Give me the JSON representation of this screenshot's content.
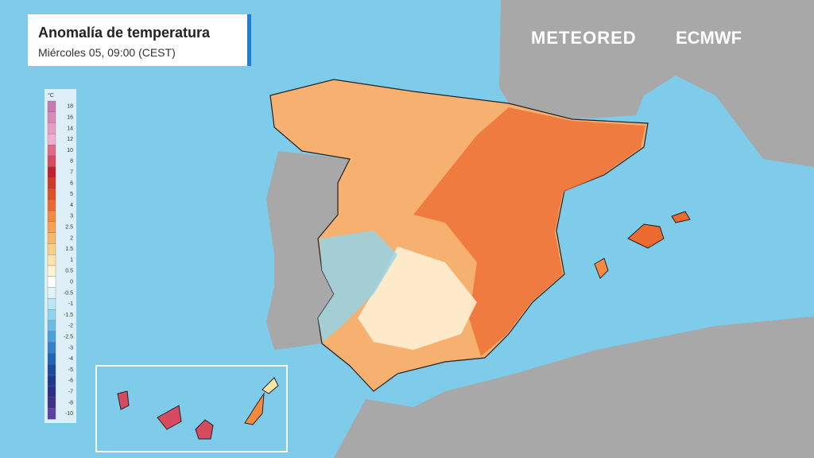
{
  "header": {
    "title": "Anomalía de temperatura",
    "subtitle": "Miércoles 05, 09:00 (CEST)"
  },
  "logos": {
    "provider": "METEORED",
    "model": "ECMWF"
  },
  "legend": {
    "unit": "°C",
    "ticks": [
      18,
      16,
      14,
      12,
      10,
      8,
      7,
      6,
      5,
      4,
      3,
      2.5,
      2,
      1.5,
      1,
      0.5,
      0,
      -0.5,
      -1,
      -1.5,
      -2,
      -2.5,
      -3,
      -4,
      -5,
      -6,
      -7,
      -8,
      -10
    ],
    "colors": [
      "#c87ab0",
      "#d88ab8",
      "#e89cc4",
      "#f0aed0",
      "#e06a8a",
      "#d84a60",
      "#c02030",
      "#d03a2a",
      "#e0502a",
      "#ec6a30",
      "#f48a40",
      "#f7a050",
      "#f9b868",
      "#fbcf88",
      "#fde3a8",
      "#fff3d0",
      "#ffffff",
      "#dff4f8",
      "#b8e8f4",
      "#90d4ee",
      "#6cbde6",
      "#4aa2dc",
      "#2f84cc",
      "#1f66b8",
      "#1a4ca0",
      "#1e3a8c",
      "#2a3088",
      "#40308e",
      "#6040a0"
    ]
  }
}
